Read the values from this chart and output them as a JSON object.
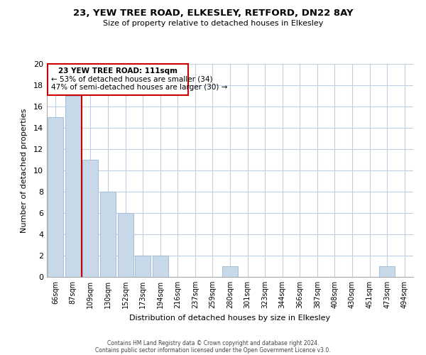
{
  "title": "23, YEW TREE ROAD, ELKESLEY, RETFORD, DN22 8AY",
  "subtitle": "Size of property relative to detached houses in Elkesley",
  "xlabel": "Distribution of detached houses by size in Elkesley",
  "ylabel": "Number of detached properties",
  "bin_labels": [
    "66sqm",
    "87sqm",
    "109sqm",
    "130sqm",
    "152sqm",
    "173sqm",
    "194sqm",
    "216sqm",
    "237sqm",
    "259sqm",
    "280sqm",
    "301sqm",
    "323sqm",
    "344sqm",
    "366sqm",
    "387sqm",
    "408sqm",
    "430sqm",
    "451sqm",
    "473sqm",
    "494sqm"
  ],
  "bar_heights": [
    15,
    17,
    11,
    8,
    6,
    2,
    2,
    0,
    0,
    0,
    1,
    0,
    0,
    0,
    0,
    0,
    0,
    0,
    0,
    1,
    0
  ],
  "bar_color": "#c8d9ea",
  "bar_edge_color": "#a8c0d8",
  "ylim": [
    0,
    20
  ],
  "yticks": [
    0,
    2,
    4,
    6,
    8,
    10,
    12,
    14,
    16,
    18,
    20
  ],
  "property_line_index": 2,
  "property_line_color": "#cc0000",
  "annotation_title": "23 YEW TREE ROAD: 111sqm",
  "annotation_line1": "← 53% of detached houses are smaller (34)",
  "annotation_line2": "47% of semi-detached houses are larger (30) →",
  "annotation_box_color": "#ffffff",
  "annotation_box_edge_color": "#cc0000",
  "footer_line1": "Contains HM Land Registry data © Crown copyright and database right 2024.",
  "footer_line2": "Contains public sector information licensed under the Open Government Licence v3.0.",
  "background_color": "#ffffff",
  "grid_color": "#c0d0e0"
}
